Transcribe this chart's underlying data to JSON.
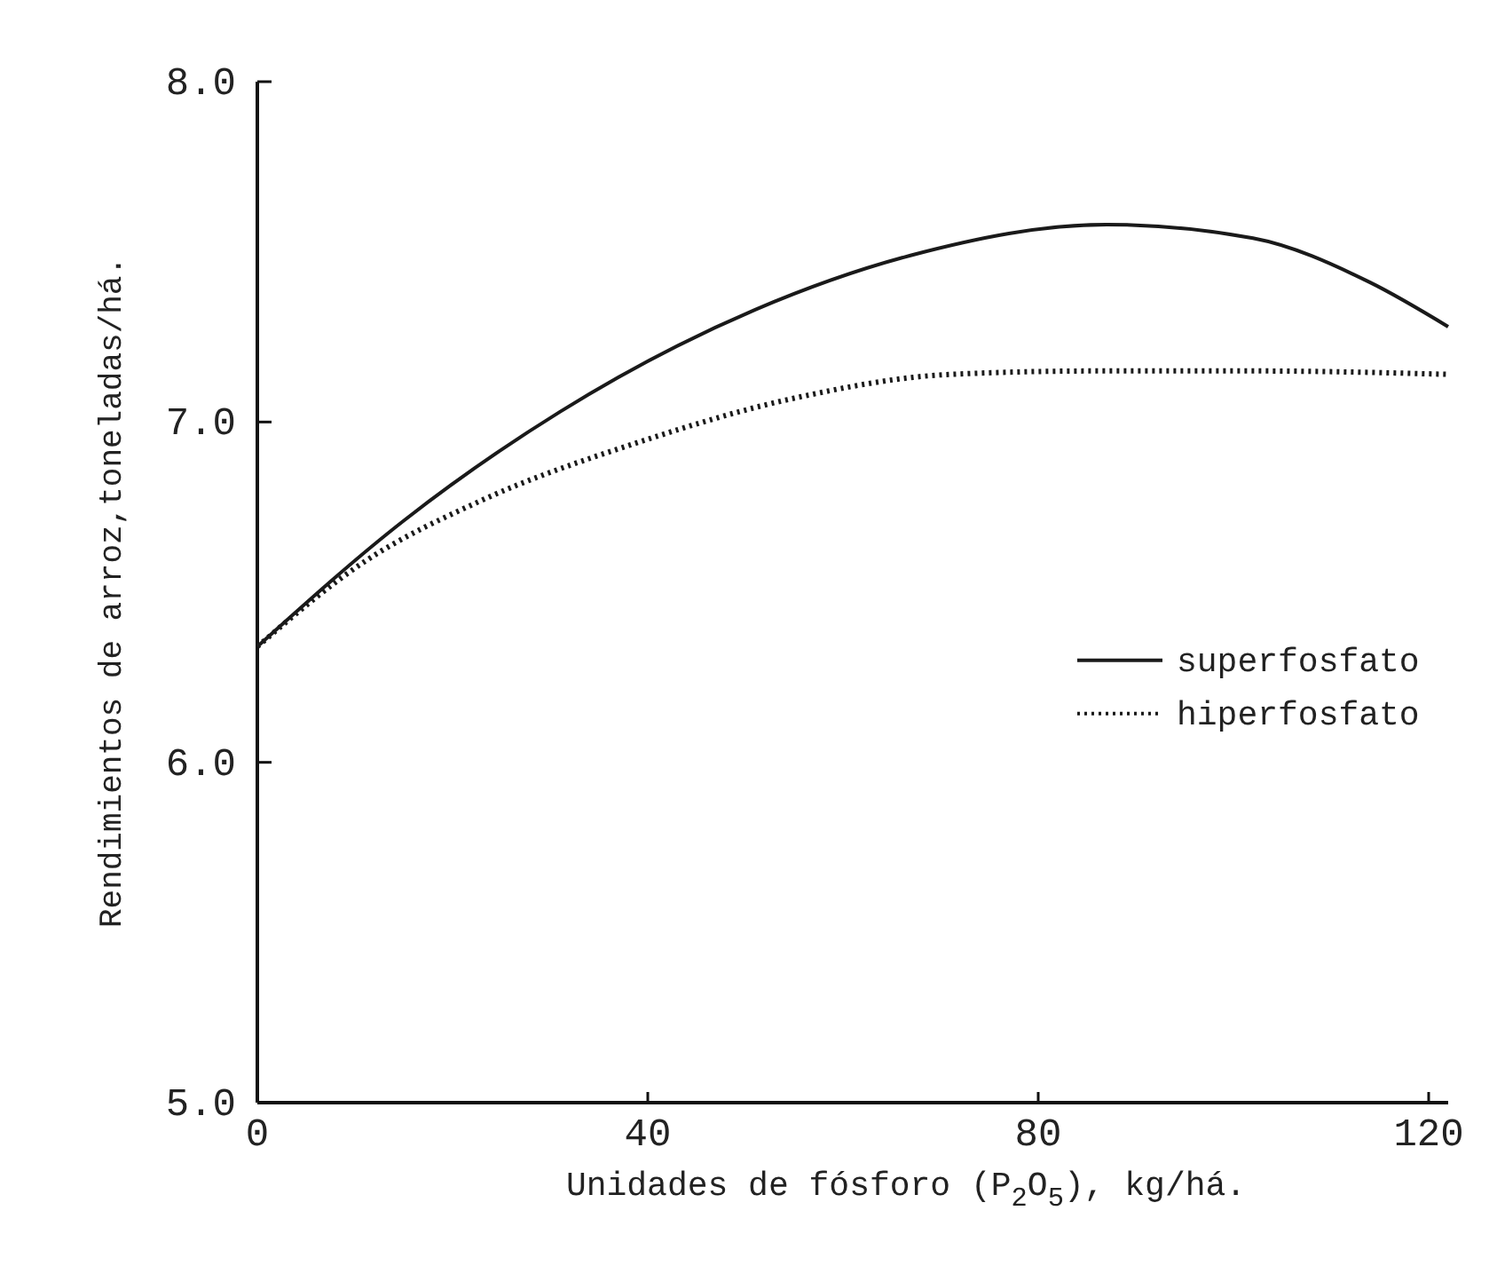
{
  "chart_data": {
    "type": "line",
    "xlabel": "Unidades de fósforo (P$_{2}$O$_{5}$), kg/há.",
    "ylabel": "Rendimientos de arroz,toneladas/há.",
    "xlim": [
      0,
      122
    ],
    "ylim": [
      5,
      8
    ],
    "xticks": [
      0,
      40,
      80,
      120
    ],
    "yticks": [
      {
        "value": 5,
        "label": "5.0"
      },
      {
        "value": 6,
        "label": "6.0"
      },
      {
        "value": 7,
        "label": "7.0"
      },
      {
        "value": 8,
        "label": "8.0"
      }
    ],
    "legend": "right",
    "grid": false,
    "series": [
      {
        "name": "superfosfato",
        "color": "#1a1a1a",
        "line_style": "solid",
        "x": [
          0,
          15,
          31,
          51,
          67,
          87,
          102,
          114,
          122
        ],
        "values": [
          6.34,
          6.71,
          7.03,
          7.33,
          7.49,
          7.58,
          7.54,
          7.41,
          7.28
        ]
      },
      {
        "name": "hiperfosfato",
        "color": "#1a1a1a",
        "line_style": "dotted",
        "x": [
          0,
          11,
          23,
          39,
          55,
          71,
          86,
          102,
          122
        ],
        "values": [
          6.34,
          6.59,
          6.77,
          6.94,
          7.07,
          7.14,
          7.15,
          7.15,
          7.14
        ]
      }
    ]
  }
}
